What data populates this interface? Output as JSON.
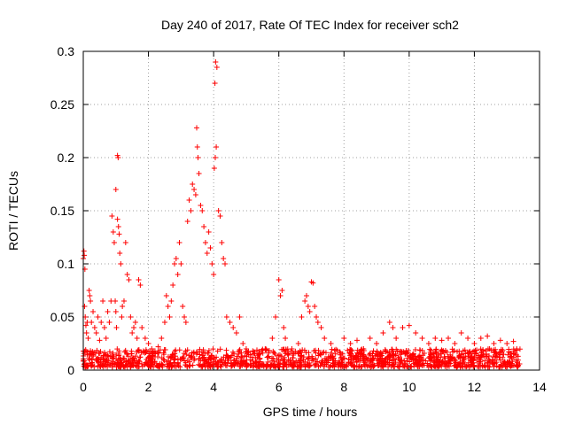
{
  "chart_data": {
    "type": "scatter",
    "title": "Day 240 of 2017, Rate Of TEC Index for receiver sch2",
    "xlabel": "GPS time / hours",
    "ylabel": "ROTI / TECUs",
    "xlim": [
      0,
      14
    ],
    "ylim": [
      0,
      0.3
    ],
    "xticks": [
      "0",
      "2",
      "4",
      "6",
      "8",
      "10",
      "12",
      "14"
    ],
    "yticks": [
      "0",
      "0.05",
      "0.1",
      "0.15",
      "0.2",
      "0.25",
      "0.3"
    ],
    "grid": true,
    "marker": "plus",
    "series": [
      {
        "color": "#ff0000",
        "points": [
          [
            0.0,
            0.105
          ],
          [
            0.02,
            0.112
          ],
          [
            0.03,
            0.108
          ],
          [
            0.05,
            0.095
          ],
          [
            0.04,
            0.06
          ],
          [
            0.06,
            0.05
          ],
          [
            0.08,
            0.042
          ],
          [
            0.1,
            0.035
          ],
          [
            0.12,
            0.045
          ],
          [
            0.15,
            0.03
          ],
          [
            0.18,
            0.075
          ],
          [
            0.2,
            0.07
          ],
          [
            0.22,
            0.065
          ],
          [
            0.25,
            0.045
          ],
          [
            0.3,
            0.055
          ],
          [
            0.35,
            0.04
          ],
          [
            0.4,
            0.035
          ],
          [
            0.45,
            0.05
          ],
          [
            0.5,
            0.028
          ],
          [
            0.55,
            0.045
          ],
          [
            0.6,
            0.065
          ],
          [
            0.65,
            0.04
          ],
          [
            0.7,
            0.03
          ],
          [
            0.75,
            0.055
          ],
          [
            0.8,
            0.045
          ],
          [
            0.85,
            0.065
          ],
          [
            0.88,
            0.145
          ],
          [
            0.92,
            0.13
          ],
          [
            0.95,
            0.12
          ],
          [
            0.98,
            0.065
          ],
          [
            1.0,
            0.055
          ],
          [
            1.02,
            0.04
          ],
          [
            1.05,
            0.142
          ],
          [
            1.08,
            0.135
          ],
          [
            1.1,
            0.128
          ],
          [
            1.05,
            0.202
          ],
          [
            1.07,
            0.2
          ],
          [
            1.0,
            0.17
          ],
          [
            1.12,
            0.11
          ],
          [
            1.15,
            0.1
          ],
          [
            1.18,
            0.05
          ],
          [
            1.2,
            0.06
          ],
          [
            1.25,
            0.065
          ],
          [
            1.3,
            0.12
          ],
          [
            1.35,
            0.09
          ],
          [
            1.4,
            0.085
          ],
          [
            1.45,
            0.05
          ],
          [
            1.5,
            0.035
          ],
          [
            1.55,
            0.04
          ],
          [
            1.6,
            0.045
          ],
          [
            1.65,
            0.03
          ],
          [
            1.7,
            0.085
          ],
          [
            1.75,
            0.08
          ],
          [
            1.8,
            0.04
          ],
          [
            1.9,
            0.03
          ],
          [
            2.0,
            0.025
          ],
          [
            2.1,
            0.02
          ],
          [
            2.2,
            0.018
          ],
          [
            2.3,
            0.022
          ],
          [
            2.4,
            0.03
          ],
          [
            2.5,
            0.045
          ],
          [
            2.55,
            0.07
          ],
          [
            2.6,
            0.06
          ],
          [
            2.65,
            0.05
          ],
          [
            2.7,
            0.065
          ],
          [
            2.75,
            0.08
          ],
          [
            2.8,
            0.1
          ],
          [
            2.85,
            0.105
          ],
          [
            2.9,
            0.09
          ],
          [
            2.95,
            0.12
          ],
          [
            3.0,
            0.1
          ],
          [
            3.05,
            0.06
          ],
          [
            3.1,
            0.05
          ],
          [
            3.15,
            0.045
          ],
          [
            3.2,
            0.14
          ],
          [
            3.25,
            0.16
          ],
          [
            3.3,
            0.15
          ],
          [
            3.35,
            0.175
          ],
          [
            3.4,
            0.17
          ],
          [
            3.45,
            0.165
          ],
          [
            3.5,
            0.21
          ],
          [
            3.48,
            0.228
          ],
          [
            3.52,
            0.2
          ],
          [
            3.55,
            0.185
          ],
          [
            3.6,
            0.155
          ],
          [
            3.65,
            0.15
          ],
          [
            3.7,
            0.135
          ],
          [
            3.75,
            0.12
          ],
          [
            3.8,
            0.11
          ],
          [
            3.85,
            0.13
          ],
          [
            3.9,
            0.115
          ],
          [
            3.95,
            0.1
          ],
          [
            4.0,
            0.09
          ],
          [
            4.05,
            0.2
          ],
          [
            4.08,
            0.21
          ],
          [
            4.02,
            0.19
          ],
          [
            4.06,
            0.29
          ],
          [
            4.1,
            0.285
          ],
          [
            4.04,
            0.27
          ],
          [
            4.15,
            0.15
          ],
          [
            4.2,
            0.145
          ],
          [
            4.25,
            0.12
          ],
          [
            4.3,
            0.105
          ],
          [
            4.35,
            0.1
          ],
          [
            4.4,
            0.05
          ],
          [
            4.5,
            0.045
          ],
          [
            4.6,
            0.04
          ],
          [
            4.7,
            0.035
          ],
          [
            4.8,
            0.05
          ],
          [
            4.9,
            0.025
          ],
          [
            5.0,
            0.02
          ],
          [
            5.2,
            0.018
          ],
          [
            5.4,
            0.015
          ],
          [
            5.6,
            0.02
          ],
          [
            5.8,
            0.03
          ],
          [
            5.9,
            0.05
          ],
          [
            6.0,
            0.085
          ],
          [
            6.05,
            0.07
          ],
          [
            6.1,
            0.075
          ],
          [
            6.15,
            0.04
          ],
          [
            6.2,
            0.03
          ],
          [
            6.4,
            0.02
          ],
          [
            6.6,
            0.025
          ],
          [
            6.7,
            0.05
          ],
          [
            6.8,
            0.065
          ],
          [
            6.85,
            0.07
          ],
          [
            6.9,
            0.06
          ],
          [
            6.95,
            0.055
          ],
          [
            7.0,
            0.083
          ],
          [
            7.05,
            0.082
          ],
          [
            7.1,
            0.06
          ],
          [
            7.15,
            0.05
          ],
          [
            7.2,
            0.045
          ],
          [
            7.3,
            0.04
          ],
          [
            7.4,
            0.03
          ],
          [
            7.6,
            0.025
          ],
          [
            8.0,
            0.03
          ],
          [
            8.2,
            0.025
          ],
          [
            8.4,
            0.028
          ],
          [
            8.6,
            0.02
          ],
          [
            8.8,
            0.03
          ],
          [
            9.0,
            0.025
          ],
          [
            9.2,
            0.035
          ],
          [
            9.4,
            0.045
          ],
          [
            9.5,
            0.04
          ],
          [
            9.6,
            0.03
          ],
          [
            9.8,
            0.04
          ],
          [
            10.0,
            0.042
          ],
          [
            10.2,
            0.035
          ],
          [
            10.4,
            0.03
          ],
          [
            10.6,
            0.025
          ],
          [
            10.8,
            0.03
          ],
          [
            11.0,
            0.028
          ],
          [
            11.2,
            0.03
          ],
          [
            11.4,
            0.025
          ],
          [
            11.6,
            0.035
          ],
          [
            11.8,
            0.03
          ],
          [
            12.0,
            0.025
          ],
          [
            12.2,
            0.03
          ],
          [
            12.4,
            0.032
          ],
          [
            12.6,
            0.025
          ],
          [
            12.8,
            0.028
          ],
          [
            13.0,
            0.025
          ],
          [
            13.2,
            0.027
          ],
          [
            13.3,
            0.02
          ]
        ]
      },
      {
        "color": "#ff0000",
        "band": {
          "x_from": 0,
          "x_to": 13.4,
          "y_min": 0.003,
          "y_max": 0.02,
          "density": 1400,
          "seed": 7
        }
      }
    ]
  }
}
